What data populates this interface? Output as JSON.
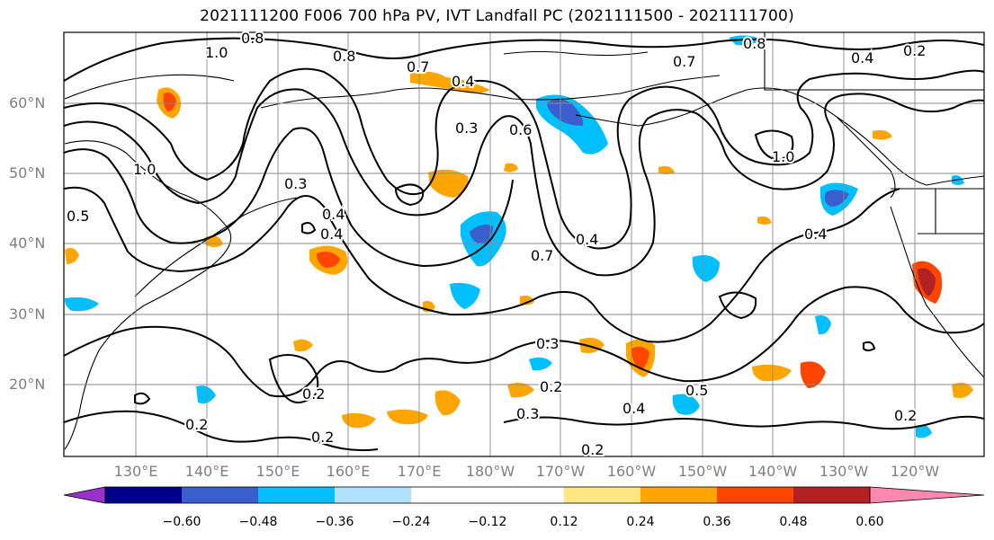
{
  "title": "2021111200 F006 700 hPa PV, IVT Landfall PC (2021111500 - 2021111700)",
  "map": {
    "lat_labels": [
      "60°N",
      "50°N",
      "40°N",
      "30°N",
      "20°N"
    ],
    "lon_labels": [
      "130°E",
      "140°E",
      "150°E",
      "160°E",
      "170°E",
      "180°W",
      "170°W",
      "160°W",
      "150°W",
      "140°W",
      "130°W",
      "120°W"
    ],
    "contour_labels": [
      "0.8",
      "1.0",
      "0.8",
      "0.7",
      "0.4",
      "0.3",
      "0.6",
      "0.7",
      "0.8",
      "0.4",
      "0.2",
      "1.0",
      "0.5",
      "0.3",
      "0.4",
      "0.4",
      "0.7",
      "0.4",
      "0.4",
      "0.3",
      "0.2",
      "0.2",
      "0.2",
      "0.3",
      "0.4",
      "0.2",
      "0.2",
      "0.5",
      "1.0",
      "0.2"
    ]
  },
  "colorbar": {
    "colors": [
      "#9932cc",
      "#00008b",
      "#3a5fcd",
      "#00bfff",
      "#b0e2ff",
      "#ffffff",
      "#ffffff",
      "#ffe680",
      "#ffa500",
      "#ff4500",
      "#b22222",
      "#ff88b0"
    ],
    "tick_labels": [
      "−0.60",
      "−0.48",
      "−0.36",
      "−0.24",
      "−0.12",
      "0.12",
      "0.24",
      "0.36",
      "0.48",
      "0.60"
    ]
  }
}
